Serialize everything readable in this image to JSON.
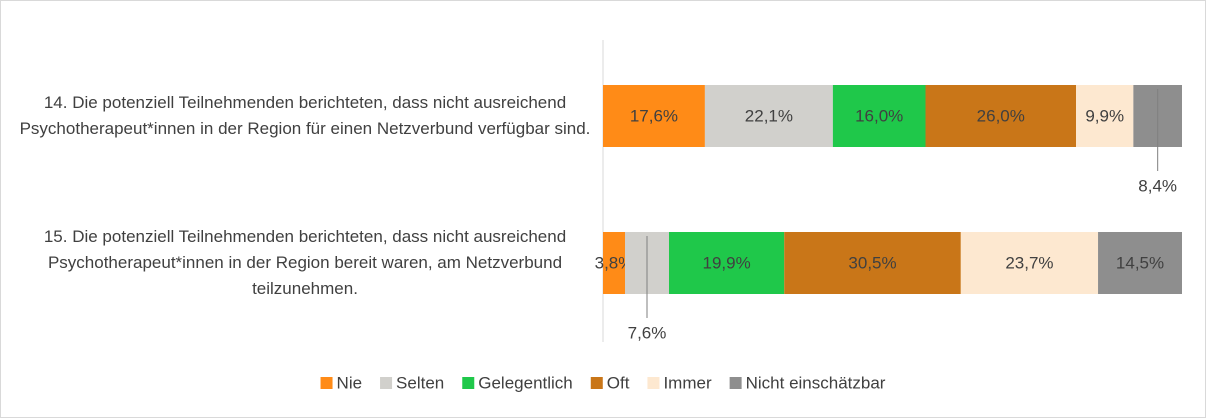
{
  "chart_data": {
    "type": "stacked-barh",
    "categories": [
      "14. Die potenziell Teilnehmenden berichteten, dass nicht ausreichend Psychotherapeut*innen in der Region für einen Netzverbund verfügbar sind.",
      "15. Die potenziell Teilnehmenden berichteten, dass nicht ausreichend Psychotherapeut*innen in der Region bereit waren, am Netzverbund teilzunehmen."
    ],
    "xlim": [
      0,
      100
    ],
    "series": [
      {
        "name": "Nie",
        "color": "#ff8b17",
        "values": [
          17.6,
          3.8
        ],
        "value_labels": [
          "17,6%",
          "3,8%"
        ]
      },
      {
        "name": "Selten",
        "color": "#d1d0cc",
        "values": [
          22.1,
          7.6
        ],
        "value_labels": [
          "22,1%",
          "7,6%"
        ]
      },
      {
        "name": "Gelegentlich",
        "color": "#1fc84a",
        "values": [
          16.0,
          19.9
        ],
        "value_labels": [
          "16,0%",
          "19,9%"
        ]
      },
      {
        "name": "Oft",
        "color": "#c97618",
        "values": [
          26.0,
          30.5
        ],
        "value_labels": [
          "26,0%",
          "30,5%"
        ]
      },
      {
        "name": "Immer",
        "color": "#fde8d0",
        "values": [
          9.9,
          23.7
        ],
        "value_labels": [
          "9,9%",
          "23,7%"
        ]
      },
      {
        "name": "Nicht einschätzbar",
        "color": "#8e8e8e",
        "values": [
          8.4,
          14.5
        ],
        "value_labels": [
          "8,4%",
          "14,5%"
        ]
      }
    ]
  }
}
